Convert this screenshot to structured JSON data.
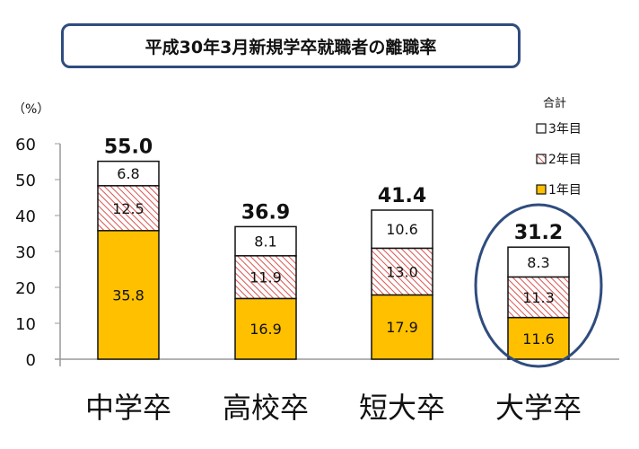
{
  "chart_data": {
    "type": "bar",
    "stacked": true,
    "title": "平成30年3月新規学卒就職者の離職率",
    "ylabel": "（%）",
    "ylim": [
      0,
      60
    ],
    "yticks": [
      0,
      10,
      20,
      30,
      40,
      50,
      60
    ],
    "categories": [
      "中学卒",
      "高校卒",
      "短大卒",
      "大学卒"
    ],
    "totals": [
      "55.0",
      "36.9",
      "41.4",
      "31.2"
    ],
    "series": [
      {
        "name": "1年目",
        "values": [
          35.8,
          16.9,
          17.9,
          11.6
        ],
        "color": "#FFC000",
        "style": "solid"
      },
      {
        "name": "2年目",
        "values": [
          12.5,
          11.9,
          13.0,
          11.3
        ],
        "color": "#E06666",
        "style": "hatch"
      },
      {
        "name": "3年目",
        "values": [
          6.8,
          8.1,
          10.6,
          8.3
        ],
        "color": "#FFFFFF",
        "style": "solid"
      }
    ],
    "legend_title": "合計",
    "legend_position": "top-right",
    "highlight_category": "大学卒",
    "highlight_color": "#2F4C7E",
    "grid": false
  }
}
